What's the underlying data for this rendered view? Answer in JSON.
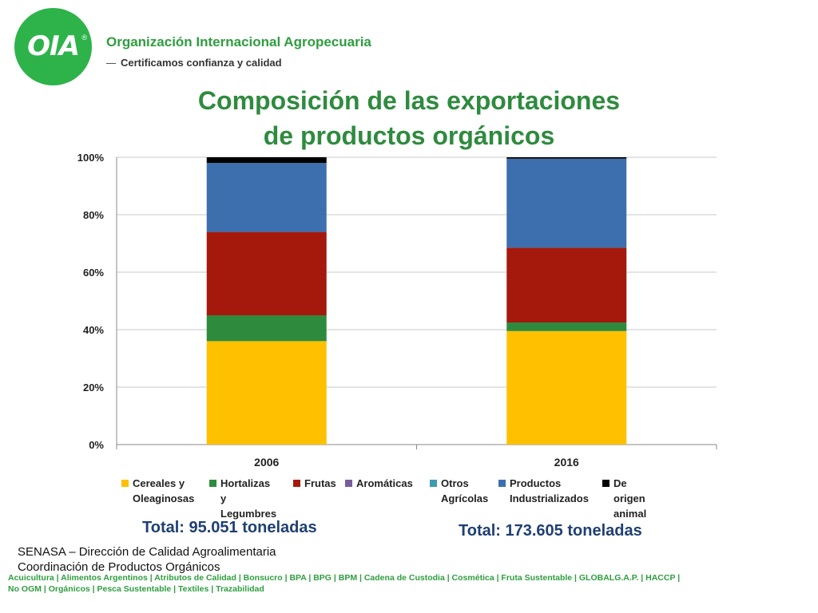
{
  "header": {
    "logo_text": "OIA",
    "logo_reg": "®",
    "org_name": "Organización Internacional Agropecuaria",
    "tagline": "Certificamos confianza y calidad"
  },
  "title_line1": "Composición de las exportaciones",
  "title_line2": "de productos orgánicos",
  "chart_data": {
    "type": "bar",
    "stacked": true,
    "percent": true,
    "categories": [
      "2006",
      "2016"
    ],
    "ylim": [
      0,
      100
    ],
    "yticks": [
      "0%",
      "20%",
      "40%",
      "60%",
      "80%",
      "100%"
    ],
    "grid": true,
    "legend_position": "bottom",
    "series": [
      {
        "name": "Cereales y Oleaginosas",
        "color": "#ffc000",
        "values": [
          36,
          39.5
        ]
      },
      {
        "name": "Hortalizas y Legumbres",
        "color": "#2e8b3e",
        "values": [
          9,
          3
        ]
      },
      {
        "name": "Frutas",
        "color": "#a5190c",
        "values": [
          29,
          26
        ]
      },
      {
        "name": "Aromáticas",
        "color": "#7a5c9e",
        "values": [
          0,
          0
        ]
      },
      {
        "name": "Otros Agrícolas",
        "color": "#3e9ab0",
        "values": [
          0,
          0
        ]
      },
      {
        "name": "Productos Industrializados",
        "color": "#3d6fae",
        "values": [
          24,
          31
        ]
      },
      {
        "name": "De origen animal",
        "color": "#000000",
        "values": [
          2,
          0.5
        ]
      }
    ]
  },
  "legend": [
    "Cereales y\nOleaginosas",
    "Hortalizas y\nLegumbres",
    "Frutas",
    "Aromáticas",
    "Otros\nAgrícolas",
    "Productos\nIndustrializados",
    "De origen animal"
  ],
  "totals": [
    "Total: 95.051 toneladas",
    "Total: 173.605 toneladas"
  ],
  "source_line1": "SENASA – Dirección de Calidad Agroalimentaria",
  "source_line2": "Coordinación de Productos Orgánicos",
  "footer_line1": "Acuicultura  |  Alimentos Argentinos  |  Atributos de Calidad  |  Bonsucro  |  BPA |  BPG |  BPM  |  Cadena de Custodia  |  Cosmética  |  Fruta Sustentable  | GLOBALG.A.P. |  HACCP  |",
  "footer_line2": "No OGM  |  Orgánicos |  Pesca Sustentable  | Textiles | Trazabilidad"
}
